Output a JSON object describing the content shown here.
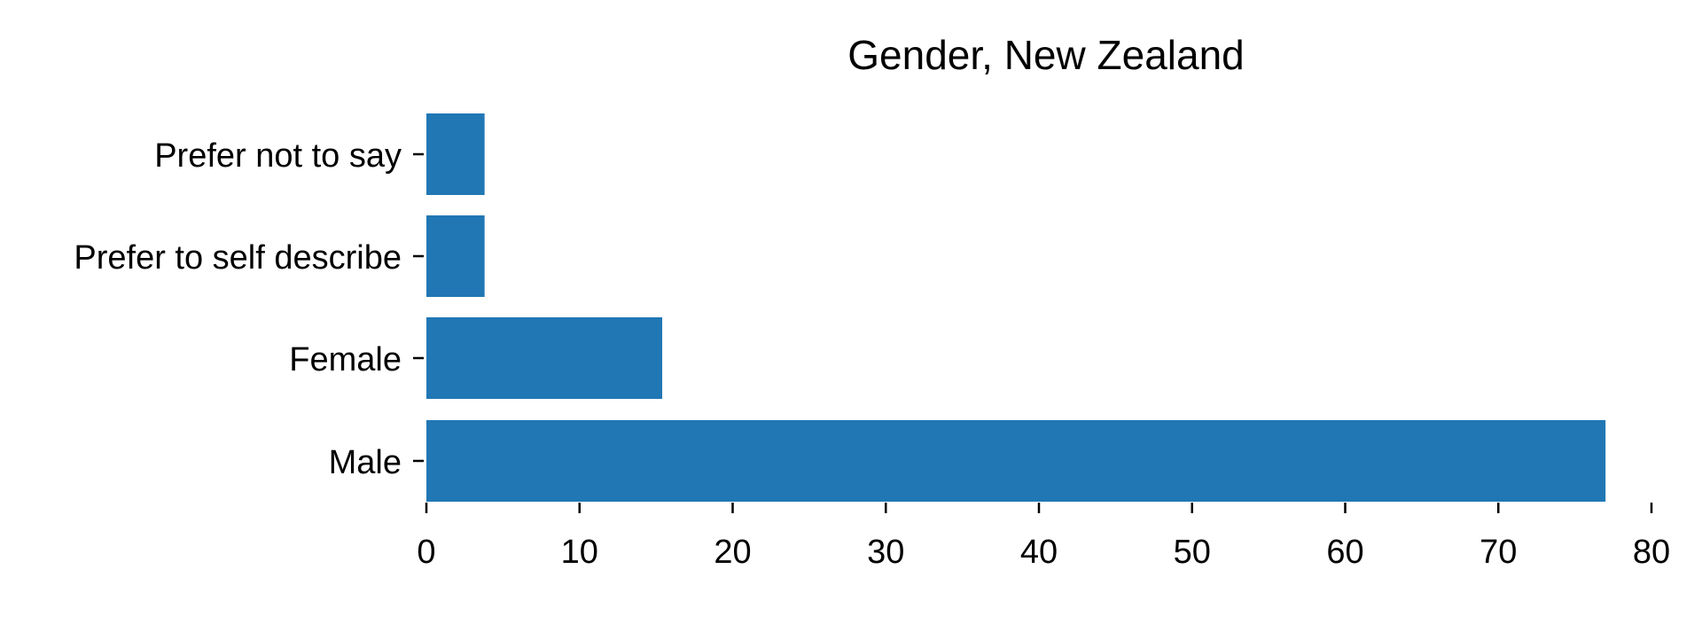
{
  "chart_data": {
    "type": "bar",
    "orientation": "horizontal",
    "title": "Gender, New Zealand",
    "xlabel": "",
    "ylabel": "",
    "categories": [
      "Male",
      "Female",
      "Prefer to self describe",
      "Prefer not to say"
    ],
    "values": [
      77,
      15.4,
      3.8,
      3.8
    ],
    "xlim": [
      0,
      80
    ],
    "xticks": [
      0,
      10,
      20,
      30,
      40,
      50,
      60,
      70,
      80
    ],
    "grid": false,
    "legend": "none",
    "bar_color": "#2077b4"
  }
}
